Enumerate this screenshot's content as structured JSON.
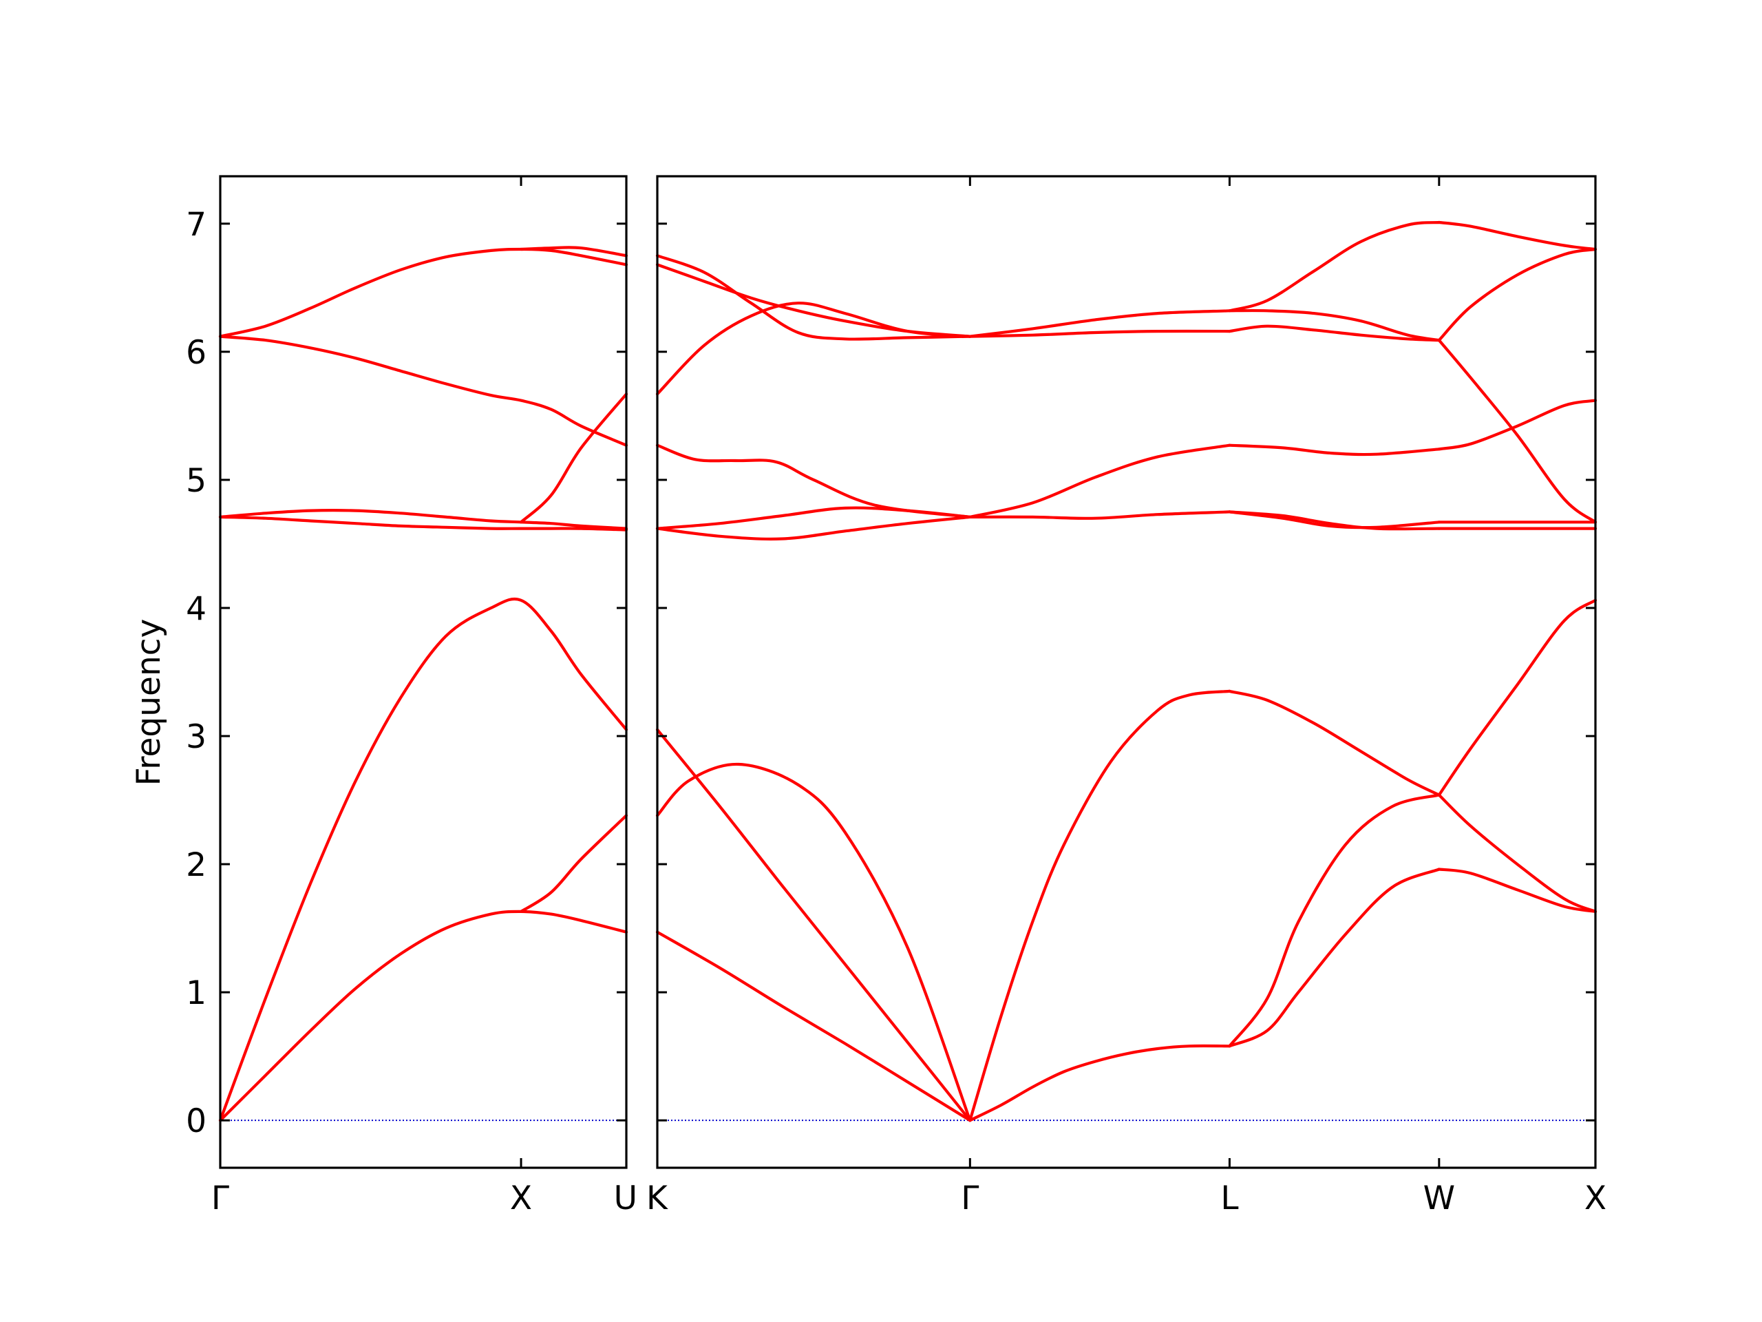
{
  "chart_data": {
    "type": "line",
    "ylabel": "Frequency",
    "ylim": [
      -0.37,
      7.37
    ],
    "y_ticks": [
      0,
      1,
      2,
      3,
      4,
      5,
      6,
      7
    ],
    "colors": {
      "bands": "#ff0000",
      "zero_line": "#0000cc",
      "axes": "#000000"
    },
    "panels": [
      {
        "name": "left",
        "xlim": [
          0,
          1.35
        ],
        "x_ticks": [
          {
            "pos": 0,
            "label": "Γ"
          },
          {
            "pos": 1.0,
            "label": "X"
          },
          {
            "pos": 1.35,
            "label": "U"
          }
        ],
        "series": [
          {
            "x": [
              0,
              0.15,
              0.3,
              0.45,
              0.6,
              0.75,
              0.9,
              1.0,
              1.1,
              1.2,
              1.35
            ],
            "y": [
              0.0,
              0.35,
              0.7,
              1.03,
              1.3,
              1.5,
              1.61,
              1.63,
              1.61,
              1.56,
              1.47
            ]
          },
          {
            "x": [
              0,
              0.15,
              0.3,
              0.45,
              0.6,
              0.75,
              0.9,
              1.0,
              1.1,
              1.2,
              1.35
            ],
            "y": [
              0.0,
              0.95,
              1.85,
              2.65,
              3.3,
              3.78,
              4.0,
              4.06,
              3.82,
              3.48,
              3.05
            ]
          },
          {
            "x": [
              0,
              0.15,
              0.3,
              0.45,
              0.6,
              0.75,
              0.9,
              1.0,
              1.1,
              1.2,
              1.35
            ],
            "y": [
              4.71,
              4.7,
              4.68,
              4.66,
              4.64,
              4.63,
              4.62,
              4.62,
              4.62,
              4.62,
              4.61
            ]
          },
          {
            "x": [
              0,
              0.15,
              0.3,
              0.45,
              0.6,
              0.75,
              0.9,
              1.0,
              1.1,
              1.2,
              1.35
            ],
            "y": [
              4.71,
              4.74,
              4.76,
              4.76,
              4.74,
              4.71,
              4.68,
              4.67,
              4.66,
              4.64,
              4.62
            ]
          },
          {
            "x": [
              0,
              0.15,
              0.3,
              0.45,
              0.6,
              0.75,
              0.9,
              1.0,
              1.1,
              1.2,
              1.35
            ],
            "y": [
              6.12,
              6.09,
              6.03,
              5.95,
              5.85,
              5.75,
              5.66,
              5.62,
              5.55,
              5.42,
              5.27
            ]
          },
          {
            "x": [
              0,
              0.15,
              0.3,
              0.45,
              0.6,
              0.75,
              0.9,
              1.0,
              1.1,
              1.2,
              1.35
            ],
            "y": [
              6.12,
              6.2,
              6.34,
              6.5,
              6.64,
              6.74,
              6.79,
              6.8,
              6.79,
              6.75,
              6.68
            ]
          },
          {
            "x": [
              1.0,
              1.1,
              1.2,
              1.35
            ],
            "y": [
              1.63,
              1.78,
              2.04,
              2.38
            ]
          },
          {
            "x": [
              1.0,
              1.1,
              1.2,
              1.35
            ],
            "y": [
              4.67,
              4.88,
              5.25,
              5.67
            ]
          },
          {
            "x": [
              1.0,
              1.1,
              1.2,
              1.35
            ],
            "y": [
              6.8,
              6.81,
              6.81,
              6.75
            ]
          }
        ]
      },
      {
        "name": "right",
        "xlim": [
          0,
          3.0
        ],
        "x_ticks": [
          {
            "pos": 0,
            "label": "K"
          },
          {
            "pos": 1.0,
            "label": "Γ"
          },
          {
            "pos": 1.83,
            "label": "L"
          },
          {
            "pos": 2.5,
            "label": "W"
          },
          {
            "pos": 3.0,
            "label": "X"
          }
        ],
        "series": [
          {
            "x": [
              0,
              0.2,
              0.4,
              0.6,
              0.8,
              1.0
            ],
            "y": [
              1.47,
              1.19,
              0.89,
              0.6,
              0.3,
              0.0
            ]
          },
          {
            "x": [
              0,
              0.2,
              0.4,
              0.6,
              0.8,
              1.0
            ],
            "y": [
              3.05,
              2.45,
              1.83,
              1.22,
              0.61,
              0.0
            ]
          },
          {
            "x": [
              0,
              0.1,
              0.26,
              0.45,
              0.6,
              0.8,
              1.0
            ],
            "y": [
              2.38,
              2.65,
              2.78,
              2.62,
              2.25,
              1.35,
              0.0
            ]
          },
          {
            "x": [
              0,
              0.2,
              0.4,
              0.6,
              0.8,
              1.0
            ],
            "y": [
              4.62,
              4.56,
              4.54,
              4.6,
              4.66,
              4.71
            ]
          },
          {
            "x": [
              0,
              0.2,
              0.4,
              0.6,
              0.8,
              1.0
            ],
            "y": [
              4.62,
              4.66,
              4.72,
              4.78,
              4.76,
              4.71
            ]
          },
          {
            "x": [
              0,
              0.12,
              0.25,
              0.38,
              0.5,
              0.7,
              1.0
            ],
            "y": [
              5.27,
              5.16,
              5.15,
              5.14,
              5.0,
              4.8,
              4.71
            ]
          },
          {
            "x": [
              0,
              0.15,
              0.3,
              0.45,
              0.6,
              0.8,
              1.0
            ],
            "y": [
              5.67,
              6.05,
              6.28,
              6.38,
              6.3,
              6.16,
              6.12
            ]
          },
          {
            "x": [
              0,
              0.15,
              0.3,
              0.45,
              0.6,
              0.8,
              1.0
            ],
            "y": [
              6.75,
              6.62,
              6.38,
              6.15,
              6.1,
              6.11,
              6.12
            ]
          },
          {
            "x": [
              0,
              0.15,
              0.3,
              0.45,
              0.6,
              0.8,
              1.0
            ],
            "y": [
              6.68,
              6.55,
              6.42,
              6.32,
              6.24,
              6.16,
              6.12
            ]
          },
          {
            "x": [
              1.0,
              1.1,
              1.2,
              1.3,
              1.4,
              1.5,
              1.6,
              1.7,
              1.83
            ],
            "y": [
              0.0,
              0.12,
              0.26,
              0.38,
              0.46,
              0.52,
              0.56,
              0.58,
              0.58
            ]
          },
          {
            "x": [
              1.0,
              1.1,
              1.2,
              1.3,
              1.45,
              1.6,
              1.7,
              1.83
            ],
            "y": [
              0.0,
              0.82,
              1.55,
              2.15,
              2.8,
              3.2,
              3.32,
              3.35
            ]
          },
          {
            "x": [
              1.0,
              1.2,
              1.4,
              1.6,
              1.83
            ],
            "y": [
              4.71,
              4.71,
              4.7,
              4.73,
              4.75
            ]
          },
          {
            "x": [
              1.0,
              1.2,
              1.4,
              1.6,
              1.83
            ],
            "y": [
              4.71,
              4.82,
              5.02,
              5.18,
              5.27
            ]
          },
          {
            "x": [
              1.0,
              1.2,
              1.4,
              1.6,
              1.83
            ],
            "y": [
              6.12,
              6.13,
              6.15,
              6.16,
              6.16
            ]
          },
          {
            "x": [
              1.0,
              1.2,
              1.4,
              1.6,
              1.83
            ],
            "y": [
              6.12,
              6.18,
              6.25,
              6.3,
              6.32
            ]
          },
          {
            "x": [
              1.83,
              1.95,
              2.05,
              2.2,
              2.35,
              2.5
            ],
            "y": [
              0.58,
              0.7,
              1.0,
              1.45,
              1.82,
              1.96
            ]
          },
          {
            "x": [
              1.83,
              1.95,
              2.05,
              2.2,
              2.35,
              2.5
            ],
            "y": [
              0.58,
              0.95,
              1.55,
              2.15,
              2.45,
              2.54
            ]
          },
          {
            "x": [
              1.83,
              1.95,
              2.1,
              2.25,
              2.4,
              2.5
            ],
            "y": [
              3.35,
              3.28,
              3.1,
              2.88,
              2.66,
              2.54
            ]
          },
          {
            "x": [
              1.83,
              2.0,
              2.15,
              2.3,
              2.5
            ],
            "y": [
              4.75,
              4.72,
              4.66,
              4.62,
              4.62
            ]
          },
          {
            "x": [
              1.83,
              2.0,
              2.15,
              2.3,
              2.5
            ],
            "y": [
              4.75,
              4.7,
              4.64,
              4.63,
              4.67
            ]
          },
          {
            "x": [
              1.83,
              2.0,
              2.15,
              2.3,
              2.5
            ],
            "y": [
              5.27,
              5.25,
              5.21,
              5.2,
              5.24
            ]
          },
          {
            "x": [
              1.83,
              1.95,
              2.1,
              2.25,
              2.4,
              2.5
            ],
            "y": [
              6.16,
              6.2,
              6.17,
              6.13,
              6.1,
              6.09
            ]
          },
          {
            "x": [
              1.83,
              1.95,
              2.1,
              2.25,
              2.4,
              2.5
            ],
            "y": [
              6.32,
              6.32,
              6.3,
              6.24,
              6.13,
              6.09
            ]
          },
          {
            "x": [
              1.83,
              1.95,
              2.1,
              2.25,
              2.4,
              2.5
            ],
            "y": [
              6.32,
              6.4,
              6.63,
              6.86,
              6.99,
              7.01
            ]
          },
          {
            "x": [
              2.5,
              2.6,
              2.75,
              2.9,
              3.0
            ],
            "y": [
              1.96,
              1.93,
              1.8,
              1.67,
              1.63
            ]
          },
          {
            "x": [
              2.5,
              2.6,
              2.75,
              2.9,
              3.0
            ],
            "y": [
              2.54,
              2.3,
              2.0,
              1.73,
              1.63
            ]
          },
          {
            "x": [
              2.5,
              2.6,
              2.75,
              2.9,
              3.0
            ],
            "y": [
              2.54,
              2.9,
              3.4,
              3.9,
              4.06
            ]
          },
          {
            "x": [
              2.5,
              2.75,
              3.0
            ],
            "y": [
              4.62,
              4.62,
              4.62
            ]
          },
          {
            "x": [
              2.5,
              2.75,
              3.0
            ],
            "y": [
              4.67,
              4.67,
              4.67
            ]
          },
          {
            "x": [
              2.5,
              2.6,
              2.75,
              2.9,
              3.0
            ],
            "y": [
              5.24,
              5.28,
              5.42,
              5.58,
              5.62
            ]
          },
          {
            "x": [
              2.5,
              2.6,
              2.75,
              2.9,
              3.0
            ],
            "y": [
              6.09,
              5.8,
              5.35,
              4.85,
              4.67
            ]
          },
          {
            "x": [
              2.5,
              2.6,
              2.75,
              2.9,
              3.0
            ],
            "y": [
              6.09,
              6.35,
              6.6,
              6.76,
              6.8
            ]
          },
          {
            "x": [
              2.5,
              2.6,
              2.75,
              2.9,
              3.0
            ],
            "y": [
              7.01,
              6.98,
              6.9,
              6.83,
              6.8
            ]
          }
        ]
      }
    ]
  }
}
